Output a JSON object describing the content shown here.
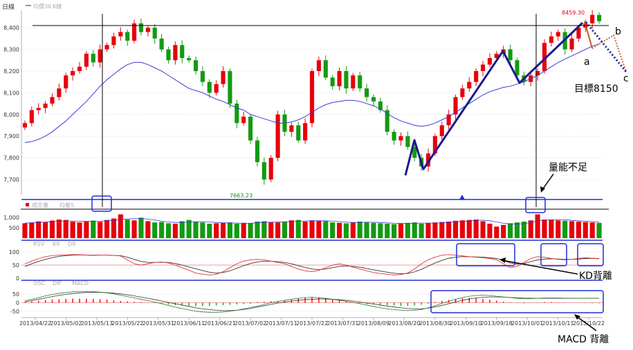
{
  "price_panel": {
    "title": "日線",
    "legend": [
      "均價30",
      "K線"
    ]
  },
  "volume_panel": {
    "legend": [
      "成交量",
      "均量5"
    ]
  },
  "kd_panel": {
    "legend": [
      "RSV",
      "K9",
      "D9"
    ]
  },
  "macd_panel": {
    "legend": [
      "OSC",
      "DIF",
      "MACD"
    ]
  },
  "annotations": {
    "high_label": "8459.30",
    "low_label": "7663.23",
    "target": "目標8150",
    "volume_insufficient": "量能不足",
    "kd_divergence": "KD背離",
    "macd_divergence": "MACD 背離",
    "point_a": "a",
    "point_b": "b",
    "point_c": "c"
  },
  "colors": {
    "up": "#e8000b",
    "down": "#139a13",
    "ma": "#3b3bd6",
    "trend": "#1a1a8c",
    "frame": "#1f2dd6",
    "k_line": "#e83030",
    "d_line": "#333333",
    "wave_c": "#cc6633"
  },
  "chart_data": [
    {
      "type": "candlestick",
      "x_tick_labels": [
        "2013/04/22",
        "2013/05/02",
        "2013/05/13",
        "2013/05/22",
        "2013/05/31",
        "2013/06/11",
        "2013/06/21",
        "2013/07/02",
        "2013/07/11",
        "2013/07/22",
        "2013/07/31",
        "2013/08/09",
        "2013/08/20",
        "2013/08/30",
        "2013/09/10",
        "2013/09/18",
        "2013/10/01",
        "2013/10/11",
        "2013/10/22"
      ],
      "y_tick_labels": [
        "7,700",
        "7,800",
        "7,900",
        "8,000",
        "8,100",
        "8,200",
        "8,300",
        "8,400"
      ],
      "ylim": [
        7630,
        8480
      ],
      "close": [
        7960,
        8020,
        8030,
        8050,
        8080,
        8120,
        8180,
        8200,
        8220,
        8280,
        8240,
        8300,
        8320,
        8360,
        8380,
        8340,
        8420,
        8380,
        8400,
        8350,
        8300,
        8250,
        8320,
        8260,
        8250,
        8200,
        8150,
        8100,
        8140,
        8200,
        8050,
        7960,
        7990,
        7880,
        7780,
        7700,
        7800,
        8000,
        7920,
        7950,
        7880,
        7960,
        8200,
        8250,
        8170,
        8130,
        8200,
        8120,
        8180,
        8120,
        8080,
        8060,
        8020,
        7920,
        7880,
        7900,
        7850,
        7800,
        7760,
        7820,
        7900,
        7950,
        8000,
        8080,
        8120,
        8150,
        8200,
        8230,
        8260,
        8280,
        8300,
        8250,
        8180,
        8150,
        8180,
        8200,
        8330,
        8360,
        8380,
        8300,
        8350,
        8400,
        8420,
        8459,
        8430
      ],
      "price_high": 8459.3,
      "price_low": 7663.23,
      "ma30": [
        7870,
        7875,
        7885,
        7900,
        7920,
        7945,
        7970,
        8000,
        8030,
        8060,
        8095,
        8130,
        8160,
        8185,
        8210,
        8230,
        8240,
        8240,
        8230,
        8215,
        8200,
        8180,
        8160,
        8140,
        8120,
        8110,
        8100,
        8085,
        8070,
        8060,
        8045,
        8030,
        8020,
        8000,
        7990,
        7980,
        7970,
        7960,
        7960,
        7965,
        7975,
        7990,
        8010,
        8030,
        8045,
        8055,
        8060,
        8065,
        8065,
        8060,
        8050,
        8040,
        8025,
        8005,
        7985,
        7970,
        7960,
        7950,
        7945,
        7950,
        7960,
        7975,
        7990,
        8010,
        8030,
        8050,
        8070,
        8090,
        8105,
        8115,
        8125,
        8130,
        8140,
        8150,
        8165,
        8180,
        8200,
        8220,
        8240,
        8255,
        8270,
        8285,
        8300,
        8315,
        8325
      ]
    },
    {
      "type": "bar",
      "y_tick_labels": [
        "1,000",
        "500"
      ],
      "ylim": [
        0,
        1400
      ],
      "values": [
        720,
        760,
        810,
        780,
        850,
        900,
        880,
        800,
        760,
        820,
        850,
        790,
        880,
        950,
        1150,
        900,
        860,
        990,
        820,
        760,
        780,
        720,
        700,
        820,
        880,
        790,
        760,
        700,
        720,
        750,
        760,
        700,
        740,
        720,
        800,
        820,
        780,
        760,
        800,
        860,
        880,
        800,
        860,
        850,
        820,
        760,
        740,
        720,
        760,
        800,
        780,
        740,
        720,
        700,
        680,
        720,
        740,
        760,
        700,
        720,
        760,
        780,
        800,
        840,
        860,
        880,
        900,
        820,
        700,
        560,
        640,
        720,
        760,
        800,
        860,
        1150,
        900,
        880,
        860,
        840,
        820,
        800,
        780,
        760,
        740
      ],
      "ma5": [
        730,
        740,
        760,
        780,
        800,
        820,
        830,
        830,
        820,
        810,
        815,
        820,
        840,
        860,
        900,
        930,
        940,
        950,
        920,
        880,
        820,
        780,
        760,
        760,
        770,
        790,
        800,
        780,
        760,
        740,
        740,
        730,
        720,
        720,
        740,
        760,
        770,
        780,
        790,
        800,
        820,
        830,
        840,
        840,
        840,
        820,
        800,
        780,
        760,
        760,
        770,
        770,
        760,
        740,
        720,
        710,
        710,
        720,
        730,
        730,
        730,
        740,
        760,
        790,
        810,
        830,
        860,
        870,
        840,
        780,
        720,
        690,
        680,
        700,
        750,
        830,
        870,
        890,
        900,
        890,
        860,
        840,
        820,
        800,
        780
      ]
    },
    {
      "type": "line",
      "y_tick_labels": [
        "100",
        "50",
        "0"
      ],
      "ylim": [
        0,
        100
      ],
      "k9": [
        55,
        65,
        75,
        82,
        86,
        88,
        89,
        90,
        90,
        88,
        87,
        88,
        88,
        87,
        85,
        70,
        55,
        50,
        55,
        60,
        62,
        58,
        50,
        40,
        30,
        20,
        15,
        12,
        15,
        25,
        40,
        55,
        65,
        70,
        72,
        70,
        65,
        60,
        55,
        45,
        35,
        28,
        25,
        30,
        40,
        50,
        55,
        50,
        42,
        35,
        28,
        22,
        18,
        15,
        12,
        14,
        20,
        35,
        55,
        70,
        80,
        88,
        90,
        88,
        85,
        82,
        80,
        78,
        75,
        70,
        55,
        40,
        45,
        60,
        75,
        82,
        80,
        75,
        72,
        70,
        72,
        75,
        78,
        76,
        74
      ],
      "d9": [
        45,
        55,
        64,
        72,
        78,
        83,
        86,
        88,
        89,
        88,
        88,
        88,
        88,
        87,
        86,
        80,
        72,
        64,
        60,
        60,
        61,
        60,
        56,
        50,
        43,
        36,
        29,
        23,
        20,
        22,
        28,
        38,
        48,
        56,
        62,
        65,
        65,
        63,
        60,
        55,
        48,
        41,
        35,
        33,
        35,
        40,
        45,
        47,
        45,
        42,
        37,
        32,
        27,
        23,
        19,
        17,
        18,
        24,
        34,
        46,
        58,
        68,
        76,
        80,
        82,
        82,
        81,
        80,
        78,
        75,
        68,
        58,
        54,
        56,
        63,
        70,
        73,
        74,
        73,
        72,
        72,
        73,
        75,
        76,
        75
      ]
    },
    {
      "type": "bar",
      "y_tick_labels": [
        "50",
        "0",
        "-50"
      ],
      "ylim": [
        -75,
        75
      ],
      "osc": [
        5,
        8,
        12,
        15,
        18,
        20,
        22,
        24,
        24,
        23,
        22,
        20,
        18,
        14,
        10,
        8,
        6,
        4,
        2,
        -2,
        -6,
        -10,
        -14,
        -16,
        -18,
        -20,
        -20,
        -18,
        -16,
        -14,
        -12,
        -10,
        -8,
        -6,
        4,
        6,
        8,
        10,
        12,
        16,
        24,
        30,
        34,
        32,
        28,
        20,
        12,
        6,
        0,
        -4,
        -8,
        -10,
        -12,
        -14,
        -16,
        -18,
        -18,
        -16,
        -12,
        -6,
        4,
        10,
        16,
        22,
        26,
        28,
        26,
        22,
        18,
        12,
        6,
        2,
        -2,
        -4,
        -2,
        2,
        4,
        4,
        2,
        1,
        0,
        -1,
        -2,
        -3,
        -3
      ],
      "dif": [
        10,
        20,
        30,
        40,
        48,
        55,
        60,
        64,
        66,
        66,
        65,
        62,
        58,
        52,
        44,
        36,
        28,
        20,
        12,
        4,
        -6,
        -16,
        -26,
        -34,
        -42,
        -50,
        -54,
        -56,
        -56,
        -54,
        -50,
        -44,
        -36,
        -28,
        -20,
        -10,
        0,
        8,
        14,
        20,
        26,
        30,
        32,
        30,
        26,
        20,
        14,
        8,
        2,
        -6,
        -14,
        -22,
        -30,
        -36,
        -40,
        -44,
        -46,
        -44,
        -40,
        -30,
        -18,
        -4,
        8,
        20,
        30,
        38,
        42,
        44,
        42,
        38,
        34,
        30,
        26,
        24,
        24,
        26,
        28,
        28,
        28,
        27,
        26,
        26,
        26,
        26,
        26
      ],
      "macd": [
        5,
        12,
        20,
        28,
        36,
        43,
        49,
        54,
        58,
        60,
        61,
        61,
        59,
        56,
        52,
        46,
        40,
        33,
        26,
        18,
        10,
        2,
        -6,
        -14,
        -22,
        -30,
        -36,
        -40,
        -44,
        -46,
        -46,
        -44,
        -40,
        -34,
        -26,
        -18,
        -10,
        -2,
        4,
        10,
        14,
        18,
        20,
        22,
        22,
        20,
        18,
        14,
        10,
        4,
        -2,
        -8,
        -14,
        -20,
        -25,
        -30,
        -34,
        -36,
        -36,
        -32,
        -25,
        -16,
        -6,
        4,
        14,
        22,
        28,
        32,
        34,
        34,
        33,
        31,
        29,
        27,
        26,
        26,
        26,
        26,
        26,
        26,
        26,
        26,
        26,
        26,
        26
      ]
    }
  ]
}
